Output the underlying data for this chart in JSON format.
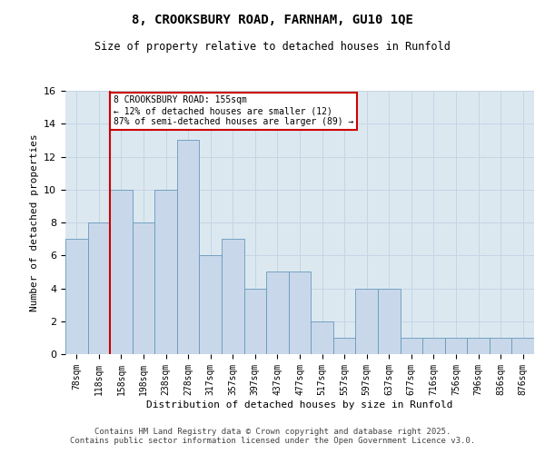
{
  "title_line1": "8, CROOKSBURY ROAD, FARNHAM, GU10 1QE",
  "title_line2": "Size of property relative to detached houses in Runfold",
  "xlabel": "Distribution of detached houses by size in Runfold",
  "ylabel": "Number of detached properties",
  "categories": [
    "78sqm",
    "118sqm",
    "158sqm",
    "198sqm",
    "238sqm",
    "278sqm",
    "317sqm",
    "357sqm",
    "397sqm",
    "437sqm",
    "477sqm",
    "517sqm",
    "557sqm",
    "597sqm",
    "637sqm",
    "677sqm",
    "716sqm",
    "756sqm",
    "796sqm",
    "836sqm",
    "876sqm"
  ],
  "values": [
    7,
    8,
    10,
    8,
    10,
    13,
    6,
    7,
    4,
    5,
    5,
    2,
    1,
    4,
    4,
    1,
    1,
    1,
    1,
    1,
    1
  ],
  "bar_color": "#c8d8ea",
  "bar_edge_color": "#6699bb",
  "vline_color": "#cc0000",
  "ylim": [
    0,
    16
  ],
  "yticks": [
    0,
    2,
    4,
    6,
    8,
    10,
    12,
    14,
    16
  ],
  "annotation_text": "8 CROOKSBURY ROAD: 155sqm\n← 12% of detached houses are smaller (12)\n87% of semi-detached houses are larger (89) →",
  "annotation_box_color": "#cc0000",
  "grid_color": "#c5d5e5",
  "background_color": "#dce8f0",
  "footer": "Contains HM Land Registry data © Crown copyright and database right 2025.\nContains public sector information licensed under the Open Government Licence v3.0."
}
